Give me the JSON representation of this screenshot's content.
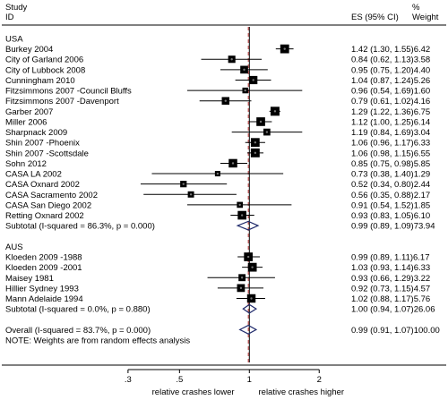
{
  "chart_data": {
    "type": "forest",
    "header": {
      "study_line1": "Study",
      "study_line2": "ID",
      "es": "ES (95% CI)",
      "weight_line1": "%",
      "weight_line2": "Weight"
    },
    "x_scale": "log",
    "x_ticks": [
      {
        "value": 0.3,
        "label": ".3"
      },
      {
        "value": 0.5,
        "label": ".5"
      },
      {
        "value": 1,
        "label": "1"
      },
      {
        "value": 2,
        "label": "2"
      }
    ],
    "xlim": [
      0.22,
      2.7
    ],
    "null_value": 1,
    "overall_line": 0.99,
    "xlabel_left": "relative crashes lower",
    "xlabel_right": "relative crashes higher",
    "colors": {
      "diamond": "#1f2a6b",
      "overall_line": "#b03030"
    },
    "rows": [
      {
        "kind": "group",
        "label": "USA"
      },
      {
        "kind": "study",
        "label": "Burkey 2004",
        "es": 1.42,
        "lo": 1.3,
        "hi": 1.55,
        "weight": 6.42,
        "es_text": "1.42 (1.30, 1.55)6.42"
      },
      {
        "kind": "study",
        "label": "City of Garland 2006",
        "es": 0.84,
        "lo": 0.62,
        "hi": 1.13,
        "weight": 3.58,
        "es_text": "0.84 (0.62, 1.13)3.58"
      },
      {
        "kind": "study",
        "label": "City of Lubbock 2008",
        "es": 0.95,
        "lo": 0.75,
        "hi": 1.2,
        "weight": 4.4,
        "es_text": "0.95 (0.75, 1.20)4.40"
      },
      {
        "kind": "study",
        "label": "Cunningham 2010",
        "es": 1.04,
        "lo": 0.87,
        "hi": 1.24,
        "weight": 5.26,
        "es_text": "1.04 (0.87, 1.24)5.26"
      },
      {
        "kind": "study",
        "label": "Fitzsimmons 2007 -Council Bluffs",
        "es": 0.96,
        "lo": 0.54,
        "hi": 1.69,
        "weight": 1.6,
        "es_text": "0.96 (0.54, 1.69)1.60"
      },
      {
        "kind": "study",
        "label": "Fitzsimmons 2007 -Davenport",
        "es": 0.79,
        "lo": 0.61,
        "hi": 1.02,
        "weight": 4.16,
        "es_text": "0.79 (0.61, 1.02)4.16"
      },
      {
        "kind": "study",
        "label": "Garber 2007",
        "es": 1.29,
        "lo": 1.22,
        "hi": 1.36,
        "weight": 6.75,
        "es_text": "1.29 (1.22, 1.36)6.75"
      },
      {
        "kind": "study",
        "label": "Miller 2006",
        "es": 1.12,
        "lo": 1.0,
        "hi": 1.25,
        "weight": 6.14,
        "es_text": "1.12 (1.00, 1.25)6.14"
      },
      {
        "kind": "study",
        "label": "Sharpnack 2009",
        "es": 1.19,
        "lo": 0.84,
        "hi": 1.69,
        "weight": 3.04,
        "es_text": "1.19 (0.84, 1.69)3.04"
      },
      {
        "kind": "study",
        "label": "Shin 2007 -Phoenix",
        "es": 1.06,
        "lo": 0.96,
        "hi": 1.17,
        "weight": 6.33,
        "es_text": "1.06 (0.96, 1.17)6.33"
      },
      {
        "kind": "study",
        "label": "Shin 2007 -Scottsdale",
        "es": 1.06,
        "lo": 0.98,
        "hi": 1.15,
        "weight": 6.55,
        "es_text": "1.06 (0.98, 1.15)6.55"
      },
      {
        "kind": "study",
        "label": "Sohn 2012",
        "es": 0.85,
        "lo": 0.75,
        "hi": 0.98,
        "weight": 5.85,
        "es_text": "0.85 (0.75, 0.98)5.85"
      },
      {
        "kind": "study",
        "label": "CASA LA 2002",
        "es": 0.73,
        "lo": 0.38,
        "hi": 1.4,
        "weight": 1.29,
        "es_text": "0.73 (0.38, 1.40)1.29"
      },
      {
        "kind": "study",
        "label": "CASA Oxnard 2002",
        "es": 0.52,
        "lo": 0.34,
        "hi": 0.8,
        "weight": 2.44,
        "es_text": "0.52 (0.34, 0.80)2.44"
      },
      {
        "kind": "study",
        "label": "CASA Sacramento 2002",
        "es": 0.56,
        "lo": 0.35,
        "hi": 0.88,
        "weight": 2.17,
        "es_text": "0.56 (0.35, 0.88)2.17"
      },
      {
        "kind": "study",
        "label": "CASA San Diego 2002",
        "es": 0.91,
        "lo": 0.54,
        "hi": 1.52,
        "weight": 1.85,
        "es_text": "0.91 (0.54, 1.52)1.85"
      },
      {
        "kind": "study",
        "label": "Retting Oxnard 2002",
        "es": 0.93,
        "lo": 0.83,
        "hi": 1.05,
        "weight": 6.1,
        "es_text": "0.93 (0.83, 1.05)6.10"
      },
      {
        "kind": "subtotal",
        "label": "Subtotal  (I-squared = 86.3%, p = 0.000)",
        "es": 0.99,
        "lo": 0.89,
        "hi": 1.09,
        "weight": 73.94,
        "es_text": "0.99 (0.89, 1.09)73.94"
      },
      {
        "kind": "blank"
      },
      {
        "kind": "group",
        "label": "AUS"
      },
      {
        "kind": "study",
        "label": "Kloeden 2009 -1988",
        "es": 0.99,
        "lo": 0.89,
        "hi": 1.11,
        "weight": 6.17,
        "es_text": "0.99 (0.89, 1.11)6.17"
      },
      {
        "kind": "study",
        "label": "Kloeden 2009 -2001",
        "es": 1.03,
        "lo": 0.93,
        "hi": 1.14,
        "weight": 6.33,
        "es_text": "1.03 (0.93, 1.14)6.33"
      },
      {
        "kind": "study",
        "label": "Maisey 1981",
        "es": 0.93,
        "lo": 0.66,
        "hi": 1.29,
        "weight": 3.22,
        "es_text": "0.93 (0.66, 1.29)3.22"
      },
      {
        "kind": "study",
        "label": "Hillier Sydney 1993",
        "es": 0.92,
        "lo": 0.73,
        "hi": 1.15,
        "weight": 4.57,
        "es_text": "0.92 (0.73, 1.15)4.57"
      },
      {
        "kind": "study",
        "label": "Mann Adelaide 1994",
        "es": 1.02,
        "lo": 0.88,
        "hi": 1.17,
        "weight": 5.76,
        "es_text": "1.02 (0.88, 1.17)5.76"
      },
      {
        "kind": "subtotal",
        "label": "Subtotal  (I-squared = 0.0%, p = 0.880)",
        "es": 1.0,
        "lo": 0.94,
        "hi": 1.07,
        "weight": 26.06,
        "es_text": "1.00 (0.94, 1.07)26.06"
      },
      {
        "kind": "blank"
      },
      {
        "kind": "subtotal",
        "label": "Overall  (I-squared = 83.7%, p = 0.000)",
        "es": 0.99,
        "lo": 0.91,
        "hi": 1.07,
        "weight": 100.0,
        "es_text": "0.99 (0.91, 1.07)100.00"
      },
      {
        "kind": "note",
        "label": "NOTE: Weights are from random effects analysis"
      }
    ]
  }
}
